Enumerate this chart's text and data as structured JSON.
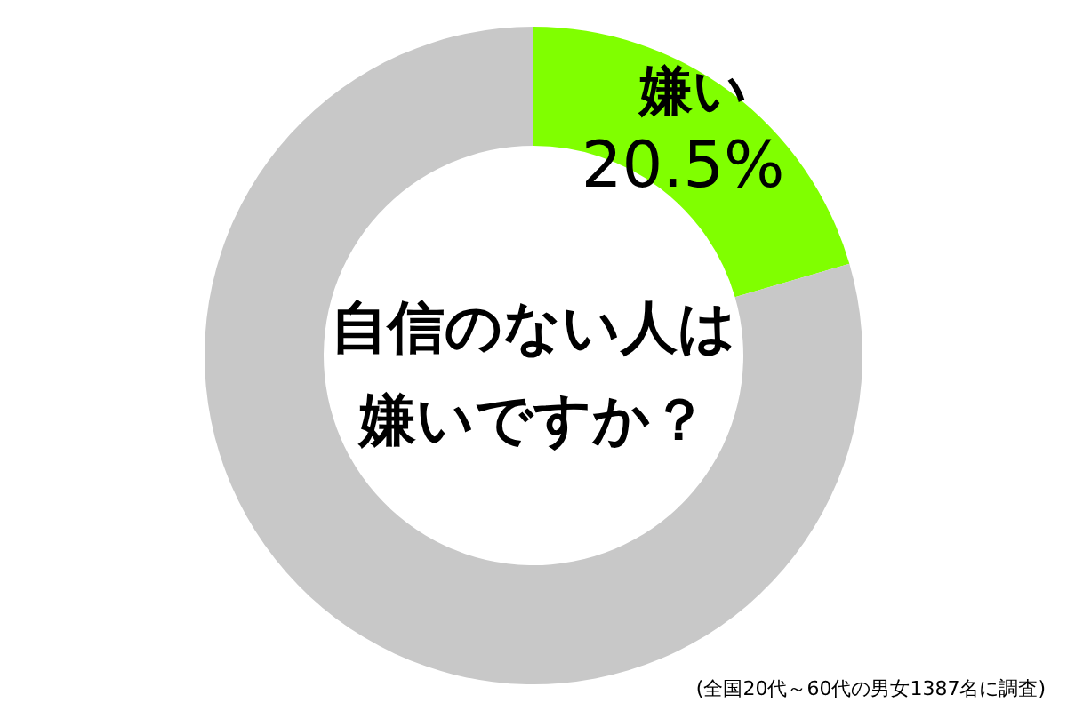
{
  "chart_data": {
    "type": "donut",
    "title": "自信のない人は嫌いですか？",
    "categories": [
      "嫌い",
      null
    ],
    "values": [
      20.5,
      79.5
    ],
    "value_labels": [
      "20.5%",
      null
    ],
    "colors": [
      "#80ff00",
      "#c8c8c8"
    ],
    "legend": false,
    "annotations": [
      "(全国20代～60代の男女1387名に調査)"
    ]
  }
}
